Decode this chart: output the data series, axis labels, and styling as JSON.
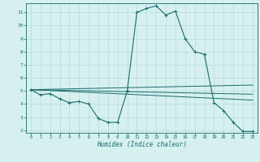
{
  "xlabel": "Humidex (Indice chaleur)",
  "ylabel": "",
  "bg_color": "#d6f0f0",
  "line_color": "#1a6b6b",
  "grid_color": "#b8dada",
  "xlim": [
    -0.5,
    23.5
  ],
  "ylim": [
    1.8,
    11.7
  ],
  "yticks": [
    2,
    3,
    4,
    5,
    6,
    7,
    8,
    9,
    10,
    11
  ],
  "xticks": [
    0,
    1,
    2,
    3,
    4,
    5,
    6,
    7,
    8,
    9,
    10,
    11,
    12,
    13,
    14,
    15,
    16,
    17,
    18,
    19,
    20,
    21,
    22,
    23
  ],
  "line1_x": [
    0,
    1,
    2,
    3,
    4,
    5,
    6,
    7,
    8,
    9,
    10,
    11,
    12,
    13,
    14,
    15,
    16,
    17,
    18,
    19,
    20,
    21,
    22,
    23
  ],
  "line1_y": [
    5.1,
    4.7,
    4.8,
    4.4,
    4.1,
    4.2,
    4.0,
    2.9,
    2.6,
    2.6,
    5.0,
    11.0,
    11.3,
    11.5,
    10.8,
    11.1,
    9.0,
    8.0,
    7.8,
    4.1,
    3.5,
    2.6,
    1.9,
    1.9
  ],
  "line2_x": [
    0,
    23
  ],
  "line2_y": [
    5.1,
    4.3
  ],
  "line3_x": [
    0,
    23
  ],
  "line3_y": [
    5.1,
    4.75
  ],
  "line4_x": [
    0,
    23
  ],
  "line4_y": [
    5.1,
    5.45
  ]
}
